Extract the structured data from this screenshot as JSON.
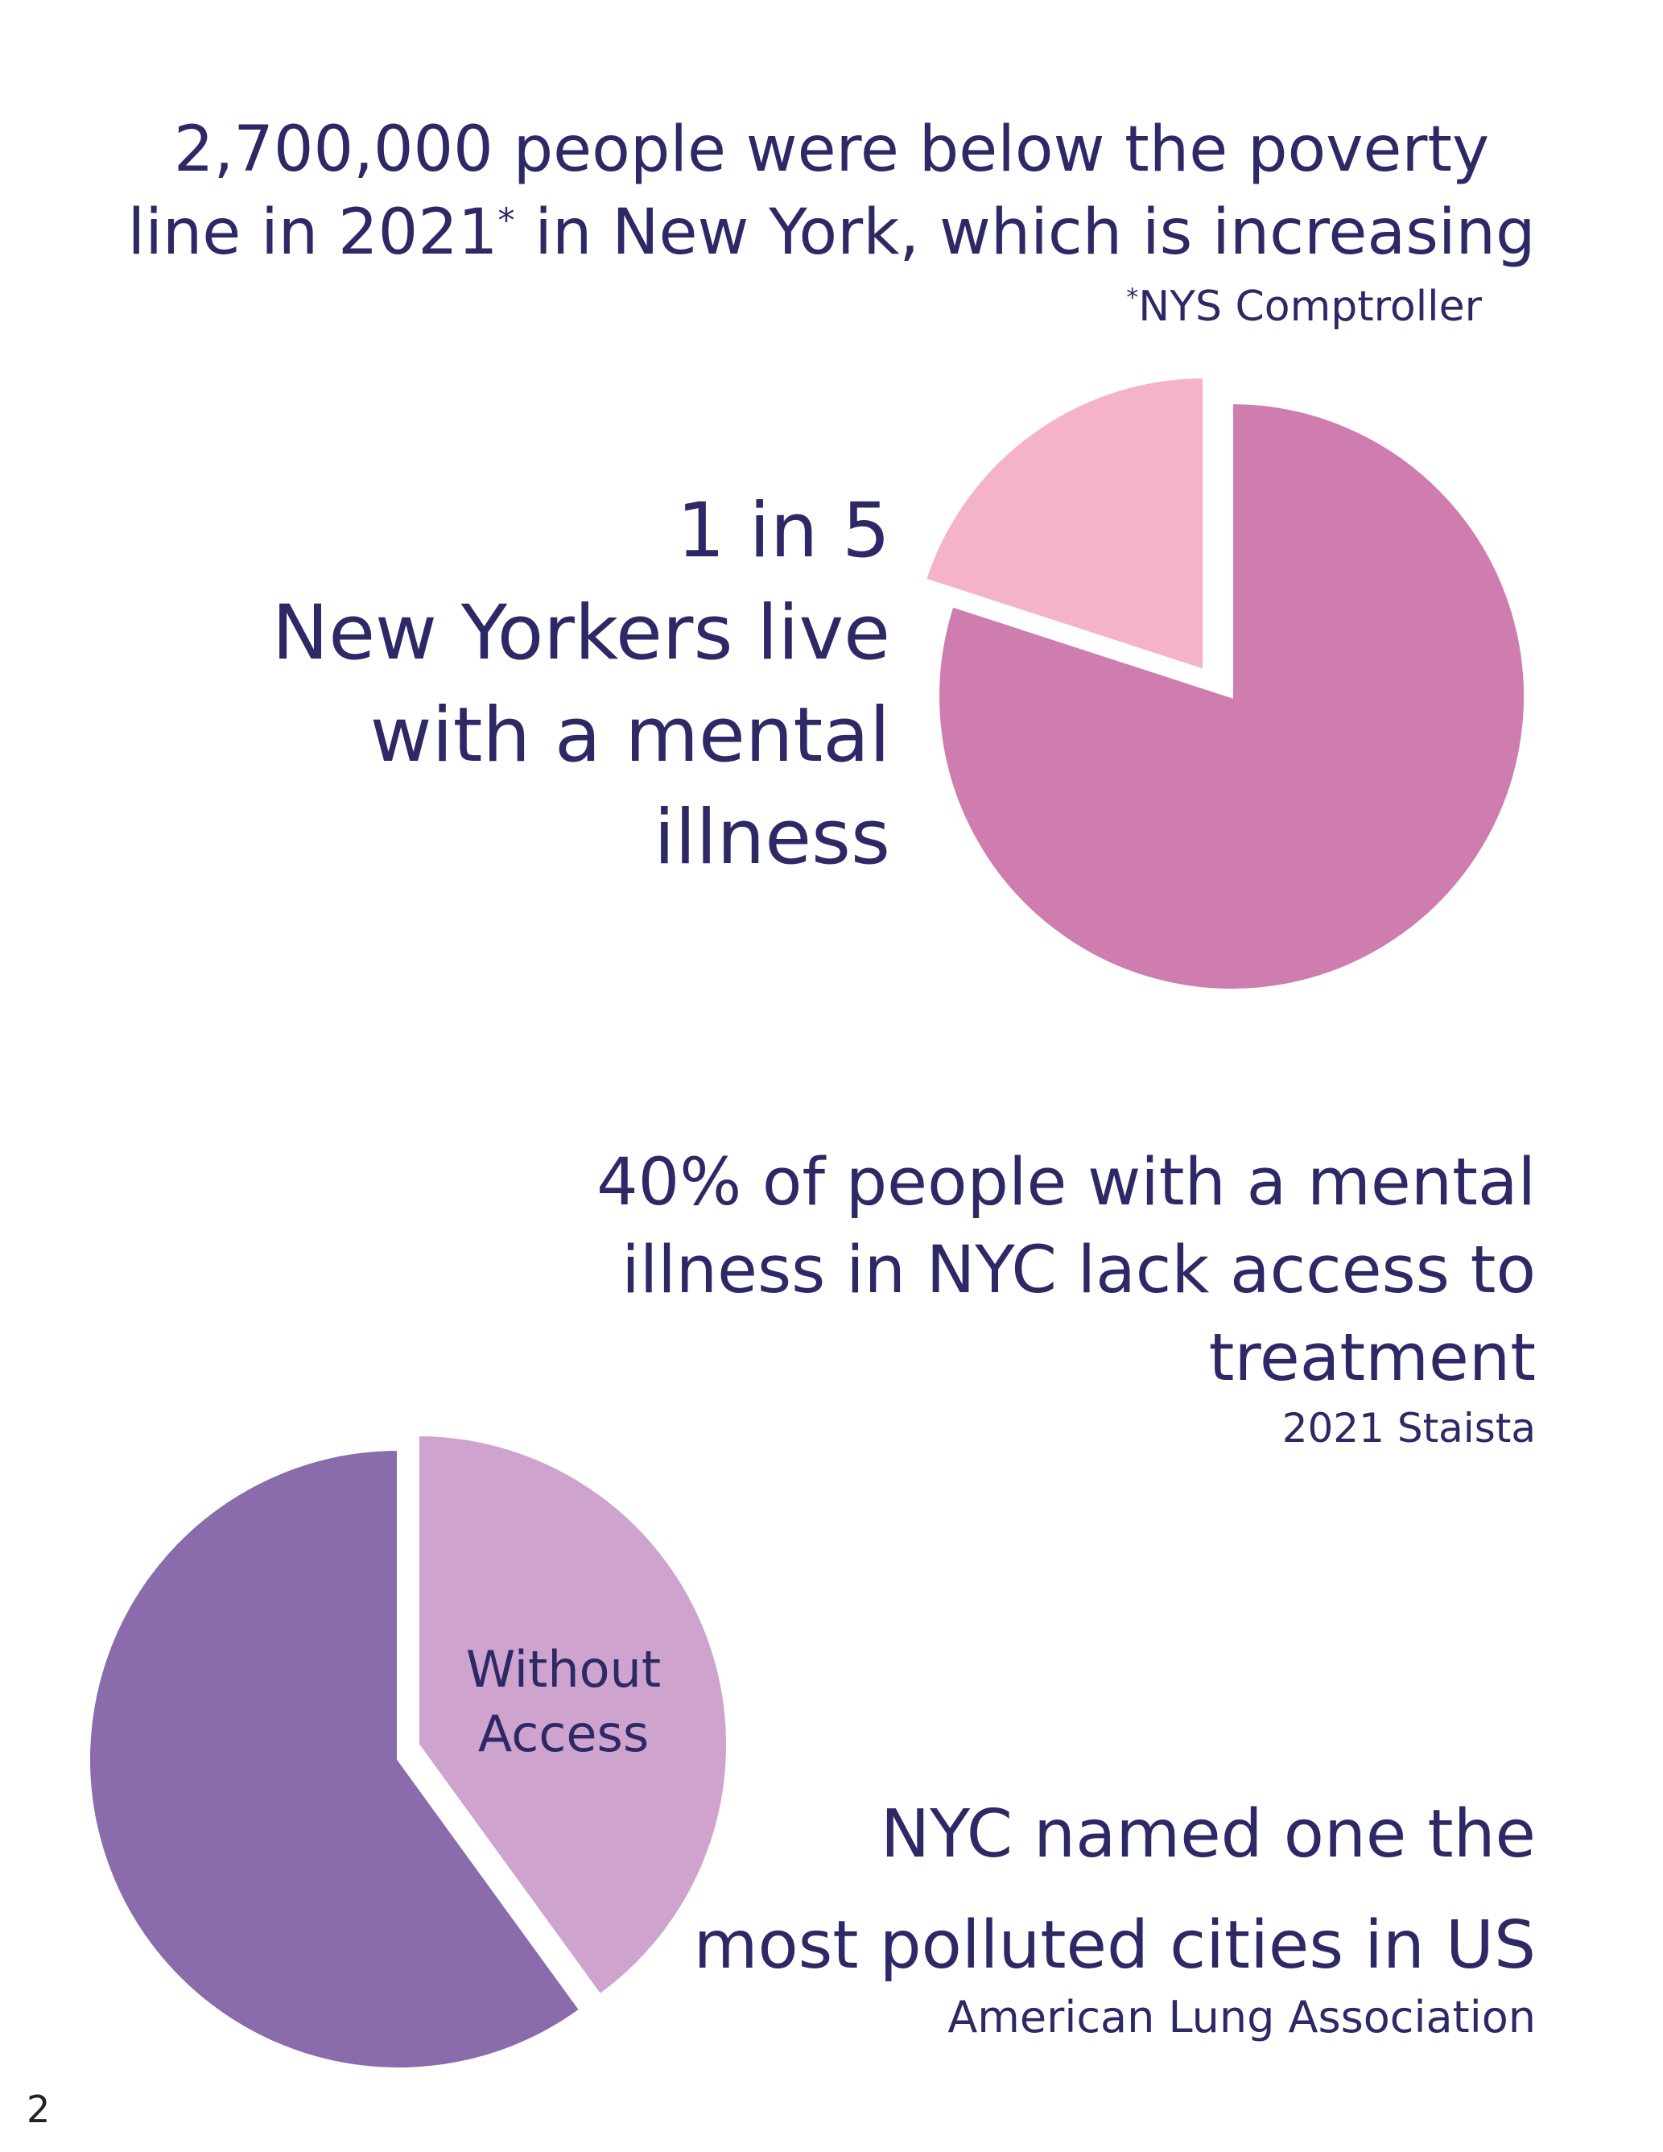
{
  "poverty": {
    "line1": "2,700,000 people were below the poverty",
    "line2_a": "line in 2021",
    "line2_sup": "*",
    "line2_b": " in New York, which is increasing",
    "source_sup": "*",
    "source": "NYS Comptroller"
  },
  "mental_illness": {
    "line1": "1 in 5",
    "line2": "New Yorkers live",
    "line3": "with a mental",
    "line4": "illness"
  },
  "treatment_access": {
    "line1": "40% of people with a mental",
    "line2": "illness in NYC lack access to",
    "line3": "treatment",
    "source": "2021 Staista"
  },
  "pollution": {
    "line1": "NYC named one the",
    "line2": "most polluted cities in US",
    "source": "American Lung Association"
  },
  "page_number": "2",
  "colors": {
    "text": "#2d2966",
    "pie1_major": "#cf7daf",
    "pie1_minor": "#f5b3cb",
    "pie2_major": "#8a6cad",
    "pie2_minor": "#cea3ce"
  },
  "chart_data": [
    {
      "type": "pie",
      "slices": [
        {
          "label": "",
          "value": 20,
          "exploded": true
        },
        {
          "label": "",
          "value": 80
        }
      ]
    },
    {
      "type": "pie",
      "slices": [
        {
          "label": "Without Access",
          "value": 40,
          "exploded": true
        },
        {
          "label": "",
          "value": 60
        }
      ]
    }
  ]
}
